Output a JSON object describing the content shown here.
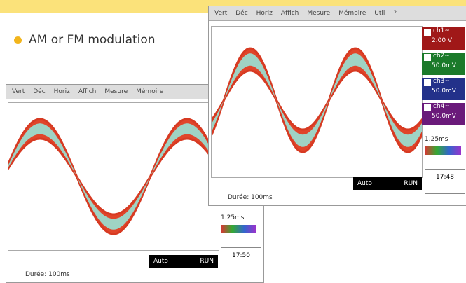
{
  "bullet": "AM or FM modulation",
  "windows": [
    {
      "menu": [
        "Vert",
        "Déc",
        "Horiz",
        "Affich",
        "Mesure",
        "Mémoire"
      ],
      "timebase": "1.25ms",
      "trigger_mode": "Auto",
      "run_state": "RUN",
      "duration": "Durée: 100ms",
      "clock": "17:50"
    },
    {
      "menu": [
        "Vert",
        "Déc",
        "Horiz",
        "Affich",
        "Mesure",
        "Mémoire",
        "Util",
        "?"
      ],
      "channels": [
        {
          "name": "ch1~",
          "scale": "2.00 V"
        },
        {
          "name": "ch2~",
          "scale": "50.0mV"
        },
        {
          "name": "ch3~",
          "scale": "50.0mV"
        },
        {
          "name": "ch4~",
          "scale": "50.0mV"
        }
      ],
      "timebase": "1.25ms",
      "trigger_mode": "Auto",
      "run_state": "RUN",
      "duration": "Durée: 100ms",
      "clock": "17:48"
    }
  ]
}
